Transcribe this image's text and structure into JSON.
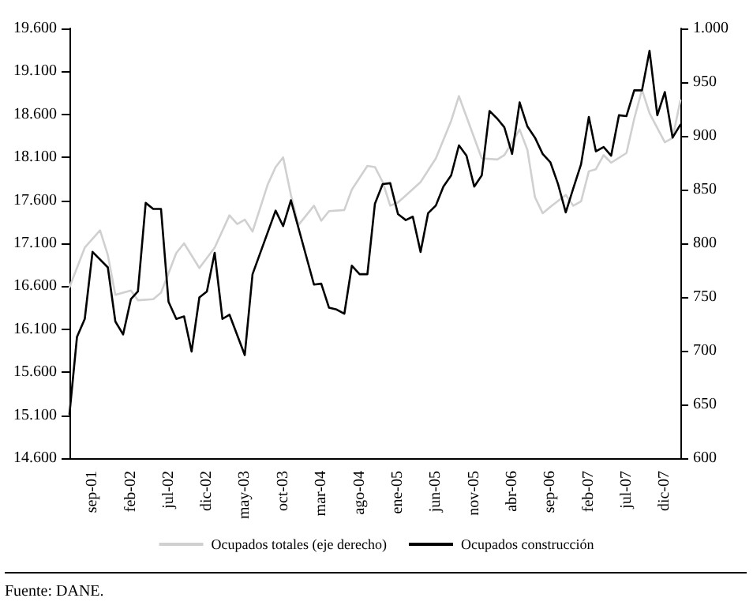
{
  "chart_data": {
    "type": "line",
    "xlim": [
      "2001-06",
      "2008-02"
    ],
    "xticks": [
      {
        "value": "2001-09",
        "label": "sep-01"
      },
      {
        "value": "2002-02",
        "label": "feb-02"
      },
      {
        "value": "2002-07",
        "label": "jul-02"
      },
      {
        "value": "2002-12",
        "label": "dic-02"
      },
      {
        "value": "2003-05",
        "label": "may-03"
      },
      {
        "value": "2003-10",
        "label": "oct-03"
      },
      {
        "value": "2004-03",
        "label": "mar-04"
      },
      {
        "value": "2004-08",
        "label": "ago-04"
      },
      {
        "value": "2005-01",
        "label": "ene-05"
      },
      {
        "value": "2005-06",
        "label": "jun-05"
      },
      {
        "value": "2005-11",
        "label": "nov-05"
      },
      {
        "value": "2006-04",
        "label": "abr-06"
      },
      {
        "value": "2006-09",
        "label": "sep-06"
      },
      {
        "value": "2007-02",
        "label": "feb-07"
      },
      {
        "value": "2007-07",
        "label": "jul-07"
      },
      {
        "value": "2007-12",
        "label": "dic-07"
      }
    ],
    "ylim": [
      14600,
      19600
    ],
    "yticks": [
      {
        "value": 14600,
        "label": "14.600"
      },
      {
        "value": 15100,
        "label": "15.100"
      },
      {
        "value": 15600,
        "label": "15.600"
      },
      {
        "value": 16100,
        "label": "16.100"
      },
      {
        "value": 16600,
        "label": "16.600"
      },
      {
        "value": 17100,
        "label": "17.100"
      },
      {
        "value": 17600,
        "label": "17.600"
      },
      {
        "value": 18100,
        "label": "18.100"
      },
      {
        "value": 18600,
        "label": "18.600"
      },
      {
        "value": 19100,
        "label": "19.100"
      },
      {
        "value": 19600,
        "label": "19.600"
      }
    ],
    "y2lim": [
      600,
      1000
    ],
    "y2ticks": [
      600,
      650,
      700,
      750,
      800,
      850,
      900,
      950,
      {
        "value": 1000,
        "label": "1.000"
      }
    ],
    "grid": false,
    "legend": "bottom",
    "marker": "none",
    "line_style": "solid",
    "annotations": [
      "Fuente: DANE."
    ],
    "series": [
      {
        "name": "Ocupados totales (eje derecho)",
        "color": "#d0d0d0",
        "axis": "y2",
        "x": [
          "2001-06",
          "2001-08",
          "2001-10",
          "2001-11",
          "2001-12",
          "2002-02",
          "2002-03",
          "2002-05",
          "2002-06",
          "2002-07",
          "2002-08",
          "2002-09",
          "2002-11",
          "2003-01",
          "2003-03",
          "2003-04",
          "2003-05",
          "2003-06",
          "2003-08",
          "2003-09",
          "2003-10",
          "2003-11",
          "2003-12",
          "2004-02",
          "2004-03",
          "2004-04",
          "2004-06",
          "2004-07",
          "2004-09",
          "2004-10",
          "2004-11",
          "2004-12",
          "2005-01",
          "2005-04",
          "2005-06",
          "2005-08",
          "2005-09",
          "2005-12",
          "2006-02",
          "2006-03",
          "2006-05",
          "2006-06",
          "2006-07",
          "2006-08",
          "2006-09",
          "2006-11",
          "2006-12",
          "2007-01",
          "2007-02",
          "2007-03",
          "2007-04",
          "2007-05",
          "2007-07",
          "2007-08",
          "2007-09",
          "2007-10",
          "2007-12",
          "2008-01",
          "2008-02"
        ],
        "values": [
          759,
          796,
          812,
          789,
          752,
          756,
          747,
          748,
          754,
          772,
          791,
          800,
          777,
          796,
          826,
          818,
          822,
          811,
          855,
          871,
          880,
          845,
          817,
          835,
          821,
          830,
          831,
          850,
          872,
          871,
          857,
          835,
          838,
          857,
          879,
          914,
          937,
          879,
          878,
          882,
          906,
          887,
          843,
          828,
          834,
          845,
          835,
          839,
          867,
          869,
          882,
          875,
          884,
          916,
          943,
          921,
          894,
          898,
          933
        ]
      },
      {
        "name": "Ocupados construcción",
        "color": "#000000",
        "x": [
          "2001-06",
          "2001-07",
          "2001-08",
          "2001-09",
          "2001-11",
          "2001-12",
          "2002-01",
          "2002-02",
          "2002-03",
          "2002-04",
          "2002-05",
          "2002-06",
          "2002-07",
          "2002-08",
          "2002-09",
          "2002-10",
          "2002-11",
          "2002-12",
          "2003-01",
          "2003-02",
          "2003-03",
          "2003-05",
          "2003-06",
          "2003-09",
          "2003-10",
          "2003-11",
          "2004-02",
          "2004-03",
          "2004-04",
          "2004-05",
          "2004-06",
          "2004-07",
          "2004-08",
          "2004-09",
          "2004-10",
          "2004-11",
          "2004-12",
          "2005-01",
          "2005-02",
          "2005-03",
          "2005-04",
          "2005-05",
          "2005-06",
          "2005-07",
          "2005-08",
          "2005-09",
          "2005-10",
          "2005-11",
          "2005-12",
          "2006-01",
          "2006-02",
          "2006-03",
          "2006-04",
          "2006-05",
          "2006-06",
          "2006-07",
          "2006-08",
          "2006-09",
          "2006-10",
          "2006-11",
          "2006-12",
          "2007-01",
          "2007-02",
          "2007-03",
          "2007-04",
          "2007-05",
          "2007-06",
          "2007-07",
          "2007-08",
          "2007-09",
          "2007-10",
          "2007-11",
          "2007-12",
          "2008-01",
          "2008-02"
        ],
        "values": [
          15110,
          16010,
          16220,
          17000,
          16820,
          16190,
          16040,
          16450,
          16540,
          17570,
          17500,
          17500,
          16420,
          16220,
          16250,
          15840,
          16470,
          16540,
          16990,
          16220,
          16270,
          15800,
          16740,
          17480,
          17300,
          17600,
          16620,
          16630,
          16350,
          16330,
          16280,
          16840,
          16740,
          16740,
          17560,
          17790,
          17800,
          17440,
          17370,
          17410,
          17000,
          17450,
          17540,
          17760,
          17890,
          18240,
          18120,
          17760,
          17890,
          18640,
          18550,
          18450,
          18140,
          18740,
          18460,
          18330,
          18140,
          18040,
          17790,
          17460,
          17740,
          18020,
          18570,
          18170,
          18220,
          18120,
          18590,
          18580,
          18880,
          18880,
          19340,
          18590,
          18860,
          18330,
          18480
        ]
      }
    ]
  }
}
